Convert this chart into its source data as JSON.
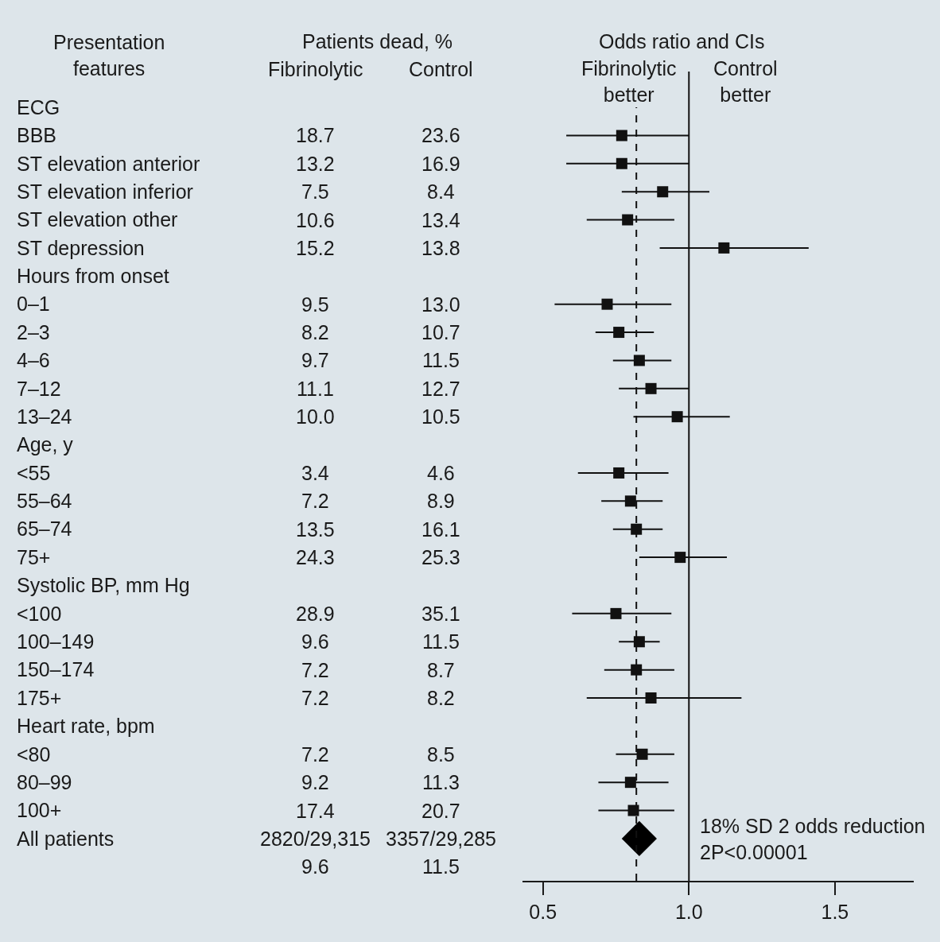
{
  "chart_data": [
    {
      "type": "other",
      "title": "Patients dead, %",
      "ylabel": "Presentation\nfeatures",
      "categories": [
        "ECG",
        "BBB",
        "ST elevation anterior",
        "ST elevation inferior",
        "ST elevation other",
        "ST depression",
        "Hours from onset",
        "0–1",
        "2–3",
        "4–6",
        "7–12",
        "13–24",
        "Age, y",
        "<55",
        "55–64",
        "65–74",
        "75+",
        "Systolic BP, mm Hg",
        "<100",
        "100–149",
        "150–174",
        "175+",
        "Heart rate, bpm",
        "<80",
        "80–99",
        "100+",
        "All patients",
        null
      ],
      "series": [
        {
          "name": "Fibrinolytic",
          "color": "#1a1a1a",
          "values": [
            null,
            18.7,
            13.2,
            7.5,
            10.6,
            15.2,
            null,
            9.5,
            8.2,
            9.7,
            11.1,
            10.0,
            null,
            3.4,
            7.2,
            13.5,
            24.3,
            null,
            28.9,
            9.6,
            7.2,
            7.2,
            null,
            7.2,
            9.2,
            17.4,
            null,
            null
          ],
          "value_labels": [
            null,
            "18.7",
            "13.2",
            "7.5",
            "10.6",
            "15.2",
            null,
            "9.5",
            "8.2",
            "9.7",
            "11.1",
            "10.0",
            null,
            "3.4",
            "7.2",
            "13.5",
            "24.3",
            null,
            "28.9",
            "9.6",
            "7.2",
            "7.2",
            null,
            "7.2",
            "9.2",
            "17.4",
            "2820/29,315",
            "9.6"
          ]
        },
        {
          "name": "Control",
          "color": "#1a1a1a",
          "values": [
            null,
            23.6,
            16.9,
            8.4,
            13.4,
            13.8,
            null,
            13.0,
            10.7,
            11.5,
            12.7,
            10.5,
            null,
            4.6,
            8.9,
            16.1,
            25.3,
            null,
            35.1,
            11.5,
            8.7,
            8.2,
            null,
            8.5,
            11.3,
            20.7,
            null,
            null
          ],
          "value_labels": [
            null,
            "23.6",
            "16.9",
            "8.4",
            "13.4",
            "13.8",
            null,
            "13.0",
            "10.7",
            "11.5",
            "12.7",
            "10.5",
            null,
            "4.6",
            "8.9",
            "16.1",
            "25.3",
            null,
            "35.1",
            "11.5",
            "8.7",
            "8.2",
            null,
            "8.5",
            "11.3",
            "20.7",
            "3357/29,285",
            "11.5"
          ]
        }
      ]
    },
    {
      "type": "scatter",
      "orientation": "horizontal",
      "xlabel": "Odds ratio and CIs",
      "categories": [
        null,
        null,
        null,
        null,
        null,
        null,
        null,
        null,
        null,
        null,
        null,
        null,
        null,
        null,
        null,
        null,
        null,
        null,
        null,
        null,
        null,
        null,
        null,
        null,
        null,
        null,
        null,
        null
      ],
      "series": [
        {
          "marker": "square",
          "color": "#111111",
          "values": [
            null,
            0.77,
            0.77,
            0.91,
            0.79,
            1.12,
            null,
            0.72,
            0.76,
            0.83,
            0.87,
            0.96,
            null,
            0.76,
            0.8,
            0.82,
            0.97,
            null,
            0.75,
            0.83,
            0.82,
            0.87,
            null,
            0.84,
            0.8,
            0.81,
            null,
            null
          ],
          "errors": [
            null,
            [
              0.58,
              1.0
            ],
            [
              0.58,
              1.0
            ],
            [
              0.77,
              1.07
            ],
            [
              0.65,
              0.95
            ],
            [
              0.9,
              1.41
            ],
            null,
            [
              0.54,
              0.94
            ],
            [
              0.68,
              0.88
            ],
            [
              0.74,
              0.94
            ],
            [
              0.76,
              1.0
            ],
            [
              0.81,
              1.14
            ],
            null,
            [
              0.62,
              0.93
            ],
            [
              0.7,
              0.91
            ],
            [
              0.74,
              0.91
            ],
            [
              0.83,
              1.13
            ],
            null,
            [
              0.6,
              0.94
            ],
            [
              0.76,
              0.9
            ],
            [
              0.71,
              0.95
            ],
            [
              0.65,
              1.18
            ],
            null,
            [
              0.75,
              0.95
            ],
            [
              0.69,
              0.93
            ],
            [
              0.69,
              0.95
            ],
            null,
            null
          ]
        },
        {
          "marker": "diamond",
          "color": "#000000",
          "values": [
            null,
            null,
            null,
            null,
            null,
            null,
            null,
            null,
            null,
            null,
            null,
            null,
            null,
            null,
            null,
            null,
            null,
            null,
            null,
            null,
            null,
            null,
            null,
            null,
            null,
            null,
            0.83,
            null
          ]
        }
      ],
      "xlim": [
        0.43,
        1.77
      ],
      "xticks": [
        0.5,
        {
          "value": 1.0,
          "label": "1.0"
        },
        1.5
      ],
      "ref_lines": [
        {
          "axis": "x",
          "value": 1.0,
          "line_style": "solid",
          "color": "#111111"
        },
        {
          "axis": "x",
          "value": 0.82,
          "line_style": "dashed",
          "color": "#111111"
        }
      ],
      "annotations": [
        "Fibrinolytic\nbetter",
        "Control\nbetter",
        "18% SD 2 odds reduction\n2P<0.00001"
      ],
      "grid": false
    }
  ]
}
